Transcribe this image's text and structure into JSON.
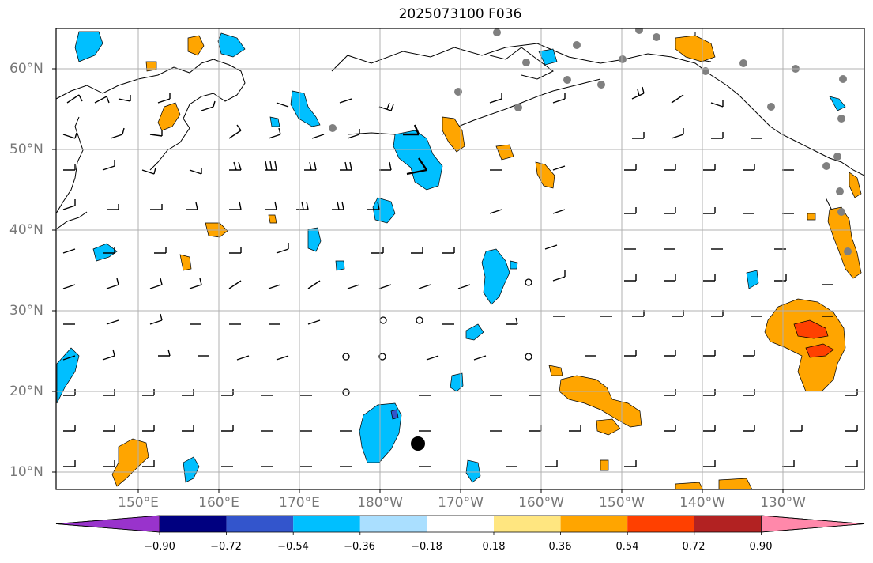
{
  "title": "2025073100 F036",
  "latitude_labels": [
    "60°N",
    "50°N",
    "40°N",
    "30°N",
    "20°N",
    "10°N"
  ],
  "longitude_labels": [
    "150°E",
    "160°E",
    "170°E",
    "180°W",
    "170°W",
    "160°W",
    "150°W",
    "140°W",
    "130°W"
  ],
  "colorbar": {
    "tick_labels": [
      "−0.90",
      "−0.72",
      "−0.54",
      "−0.36",
      "−0.18",
      "0.18",
      "0.36",
      "0.54",
      "0.72",
      "0.90"
    ],
    "colors": [
      "#9933cc",
      "#000080",
      "#3355cc",
      "#00bfff",
      "#aadfff",
      "#ffffff",
      "#ffe680",
      "#ffa500",
      "#ff4000",
      "#b22222",
      "#ff88aa"
    ]
  },
  "colors": {
    "land": "#ffffff",
    "coastline": "#000000",
    "gridline": "#b0b0b0",
    "station_dot": "#808080"
  }
}
